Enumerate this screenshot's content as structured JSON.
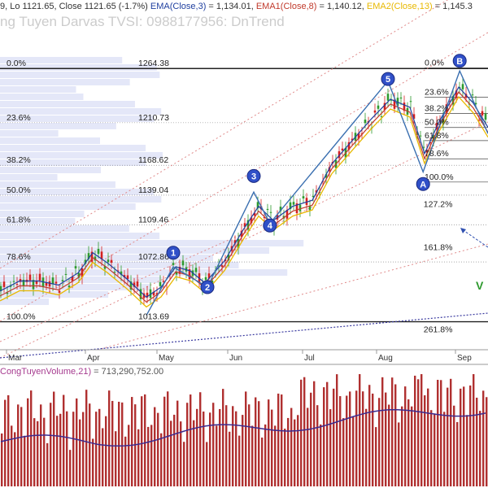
{
  "header": {
    "ohlc_text": "9, Lo 1121.65, Close 1121.65 (-1.7%)",
    "ema_label": "EMA(Close,3)",
    "ema_value": " = 1,134.01,",
    "ema1_label": "EMA1(Close,8)",
    "ema1_value": " = 1,140.12,",
    "ema2_label": "EMA2(Close,13)",
    "ema2_value": " = 1,145.3",
    "watermark": "ng Tuyen Darvas TVSI: 0988177956: DnTrend"
  },
  "colors": {
    "up": "#2e9a2e",
    "down": "#d42020",
    "ema": "#1f3f9f",
    "ema1": "#c0392b",
    "ema2": "#e8b800",
    "wave_line": "#3a6fb0",
    "trend_dots": "#e08a8a",
    "volume_bar": "#b03030",
    "volume_ma": "#3b2a8f",
    "volume_profile": "#d8ddf5"
  },
  "chart_data": [
    {
      "type": "candlestick",
      "xlabel": "",
      "ylabel": "",
      "ylim": [
        990,
        1300
      ],
      "x_ticks": [
        "Mar",
        "Apr",
        "May",
        "Jun",
        "Jul",
        "Aug",
        "Sep"
      ],
      "price_levels": [
        {
          "label": "1264.38",
          "value": 1264.38
        },
        {
          "label": "1210.73",
          "value": 1210.73
        },
        {
          "label": "1168.62",
          "value": 1168.62
        },
        {
          "label": "1139.04",
          "value": 1139.04
        },
        {
          "label": "1109.46",
          "value": 1109.46
        },
        {
          "label": "1072.86",
          "value": 1072.86
        },
        {
          "label": "1013.69",
          "value": 1013.69
        }
      ],
      "fib_left": [
        {
          "label": "0.0%",
          "value": 1264.38
        },
        {
          "label": "23.6%",
          "value": 1210.73
        },
        {
          "label": "38.2%",
          "value": 1168.62
        },
        {
          "label": "50.0%",
          "value": 1139.04
        },
        {
          "label": "61.8%",
          "value": 1109.46
        },
        {
          "label": "78.6%",
          "value": 1072.86
        },
        {
          "label": "100.0%",
          "value": 1013.69
        }
      ],
      "fib_right": [
        {
          "label": "0.0%",
          "value": 1265
        },
        {
          "label": "23.6%",
          "value": 1236
        },
        {
          "label": "38.2%",
          "value": 1220
        },
        {
          "label": "50.0%",
          "value": 1206
        },
        {
          "label": "61.8%",
          "value": 1193
        },
        {
          "label": "78.6%",
          "value": 1175
        },
        {
          "label": "100.0%",
          "value": 1152
        }
      ],
      "fib_ext": [
        {
          "label": "127.2%",
          "value": 1125
        },
        {
          "label": "161.8%",
          "value": 1082
        },
        {
          "label": "261.8%",
          "value": 1001
        }
      ],
      "wave_labels": [
        {
          "label": "1",
          "x": 0.355,
          "value": 1082
        },
        {
          "label": "2",
          "x": 0.425,
          "value": 1048
        },
        {
          "label": "3",
          "x": 0.52,
          "value": 1158
        },
        {
          "label": "4",
          "x": 0.553,
          "value": 1109
        },
        {
          "label": "5",
          "x": 0.795,
          "value": 1254
        },
        {
          "label": "A",
          "x": 0.867,
          "value": 1150
        },
        {
          "label": "B",
          "x": 0.942,
          "value": 1272
        }
      ],
      "wave_path": [
        [
          0.3,
          1020
        ],
        [
          0.355,
          1068
        ],
        [
          0.425,
          1048
        ],
        [
          0.52,
          1142
        ],
        [
          0.553,
          1111
        ],
        [
          0.795,
          1252
        ],
        [
          0.867,
          1162
        ],
        [
          0.942,
          1262
        ],
        [
          1.0,
          1200
        ]
      ],
      "ema_path": [
        [
          0.0,
          1044
        ],
        [
          0.04,
          1054
        ],
        [
          0.08,
          1054
        ],
        [
          0.12,
          1050
        ],
        [
          0.16,
          1062
        ],
        [
          0.19,
          1082
        ],
        [
          0.22,
          1072
        ],
        [
          0.26,
          1056
        ],
        [
          0.3,
          1038
        ],
        [
          0.33,
          1048
        ],
        [
          0.36,
          1068
        ],
        [
          0.39,
          1064
        ],
        [
          0.42,
          1052
        ],
        [
          0.46,
          1074
        ],
        [
          0.5,
          1106
        ],
        [
          0.53,
          1128
        ],
        [
          0.56,
          1114
        ],
        [
          0.6,
          1128
        ],
        [
          0.64,
          1134
        ],
        [
          0.68,
          1170
        ],
        [
          0.72,
          1192
        ],
        [
          0.76,
          1214
        ],
        [
          0.8,
          1234
        ],
        [
          0.84,
          1226
        ],
        [
          0.87,
          1180
        ],
        [
          0.9,
          1212
        ],
        [
          0.94,
          1246
        ],
        [
          0.97,
          1230
        ],
        [
          1.0,
          1206
        ]
      ],
      "volume_panel": {
        "label": "CongTuyenVolume,21)",
        "value_text": " = 713,290,752.00"
      }
    }
  ]
}
